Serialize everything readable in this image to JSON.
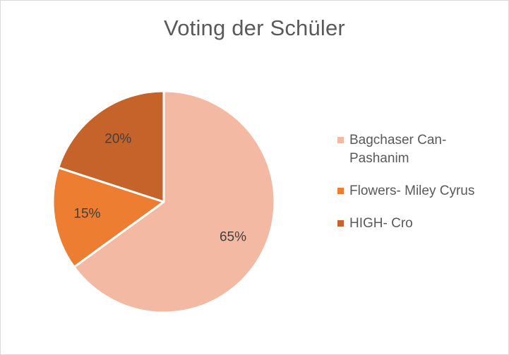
{
  "chart_data": {
    "type": "pie",
    "title": "Voting der Schüler",
    "categories": [
      "Bagchaser Can- Pashanim",
      "Flowers- Miley Cyrus",
      "HIGH- Cro"
    ],
    "values": [
      65,
      15,
      20
    ],
    "value_labels": [
      "65%",
      "15%",
      "20%"
    ],
    "colors": [
      "#F4B9A2",
      "#ED7D31",
      "#C5632A"
    ],
    "legend_position": "right"
  }
}
